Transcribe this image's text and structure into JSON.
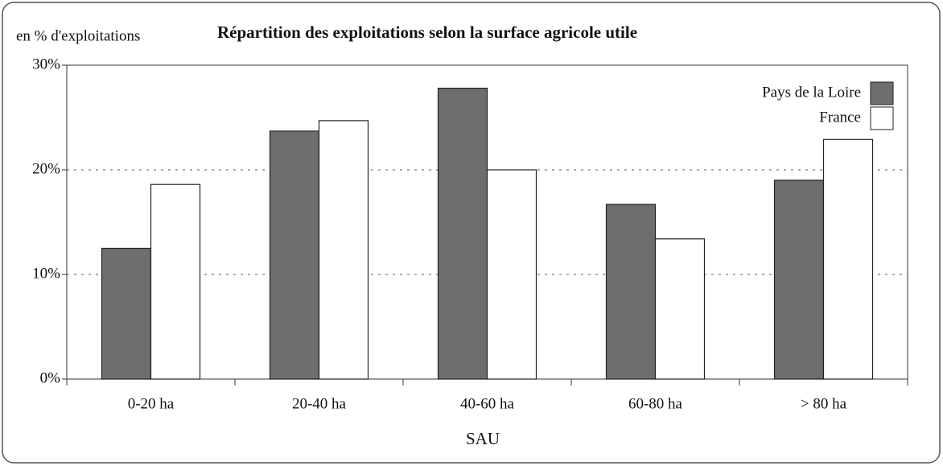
{
  "chart_data": {
    "type": "bar",
    "title": "Répartition des exploitations selon la surface agricole utile",
    "y_label": "en % d'exploitations",
    "x_label": "SAU",
    "categories": [
      "0-20 ha",
      "20-40 ha",
      "40-60 ha",
      "60-80 ha",
      "> 80 ha"
    ],
    "series": [
      {
        "name": "Pays de la Loire",
        "color": "#6e6e6e",
        "values": [
          12.5,
          23.7,
          27.8,
          16.7,
          19.0
        ]
      },
      {
        "name": "France",
        "color": "#ffffff",
        "values": [
          18.6,
          24.7,
          20.0,
          13.4,
          22.9
        ]
      }
    ],
    "ylim": [
      0,
      30
    ],
    "yticks": [
      {
        "value": 0,
        "label": "0%"
      },
      {
        "value": 10,
        "label": "10%"
      },
      {
        "value": 20,
        "label": "20%"
      },
      {
        "value": 30,
        "label": "30%"
      }
    ],
    "grid": true,
    "legend": "top-right"
  }
}
